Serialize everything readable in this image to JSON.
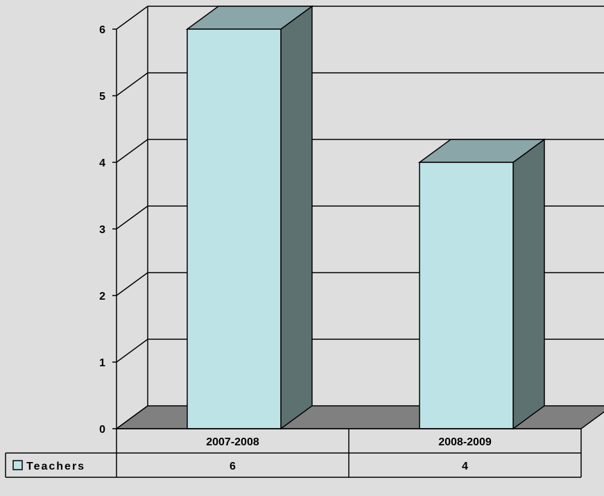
{
  "chart_data": {
    "type": "bar",
    "categories": [
      "2007-2008",
      "2008-2009"
    ],
    "series": [
      {
        "name": "Teachers",
        "values": [
          6,
          4
        ]
      }
    ],
    "ylim": [
      0,
      6
    ],
    "yticks": [
      "0",
      "1",
      "2",
      "3",
      "4",
      "5",
      "6"
    ],
    "grid": true,
    "legend_placement": "data-table-left",
    "data_table": {
      "row_label": "Teachers",
      "values": [
        "6",
        "4"
      ]
    },
    "colors": {
      "background": "#dedede",
      "bar_front": "#bde3e6",
      "bar_top": "#8aa6a8",
      "bar_side": "#5e7171",
      "floor": "#808080",
      "grid": "#000000"
    }
  }
}
